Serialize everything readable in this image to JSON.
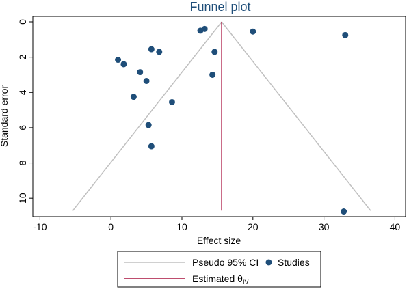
{
  "chart_data": {
    "type": "scatter",
    "title": "Funnel plot",
    "xlabel": "Effect size",
    "ylabel": "Standard error",
    "xlim": [
      -11,
      41.5
    ],
    "ylim": [
      0,
      11
    ],
    "y_reversed": true,
    "x_ticks": [
      -10,
      0,
      10,
      20,
      30,
      40
    ],
    "y_ticks": [
      0,
      2,
      4,
      6,
      8,
      10
    ],
    "grid": false,
    "legend_position": "bottom",
    "estimate": 15.6,
    "se_max": 10.7,
    "ci_level": 1.96,
    "series": [
      {
        "name": "Studies",
        "kind": "points",
        "color": "#1f4e79",
        "points": [
          {
            "x": 12.6,
            "y": 0.5
          },
          {
            "x": 13.2,
            "y": 0.4
          },
          {
            "x": 20.0,
            "y": 0.55
          },
          {
            "x": 33.0,
            "y": 0.75
          },
          {
            "x": 5.7,
            "y": 1.55
          },
          {
            "x": 6.8,
            "y": 1.7
          },
          {
            "x": 14.6,
            "y": 1.7
          },
          {
            "x": 1.0,
            "y": 2.15
          },
          {
            "x": 1.8,
            "y": 2.4
          },
          {
            "x": 4.1,
            "y": 2.85
          },
          {
            "x": 5.0,
            "y": 3.35
          },
          {
            "x": 14.3,
            "y": 3.0
          },
          {
            "x": 3.2,
            "y": 4.25
          },
          {
            "x": 8.6,
            "y": 4.55
          },
          {
            "x": 5.3,
            "y": 5.85
          },
          {
            "x": 5.7,
            "y": 7.05
          },
          {
            "x": 32.8,
            "y": 10.75
          }
        ]
      },
      {
        "name": "Pseudo 95% CI",
        "kind": "ci-lines",
        "color": "#c0c0c0"
      },
      {
        "name": "Estimated θIV",
        "kind": "estimate-line",
        "color": "#a8123e"
      }
    ],
    "legend": {
      "ci_label": "Pseudo 95% CI",
      "studies_label": "Studies",
      "estimate_label_main": "Estimated θ",
      "estimate_label_sub": "IV"
    }
  }
}
